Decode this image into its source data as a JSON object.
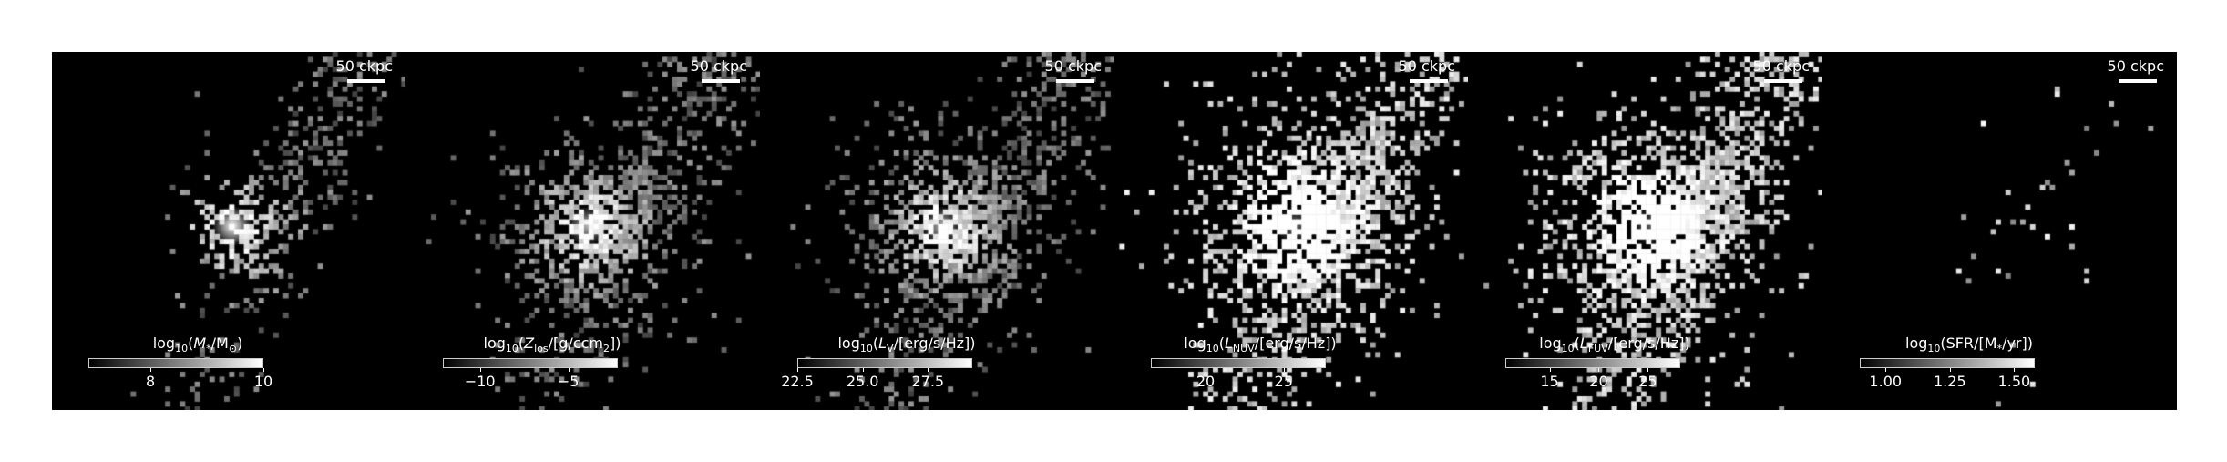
{
  "panels": [
    {
      "scale_label": "50 ckpc",
      "quantity": "M",
      "cbar": {
        "pre": "log",
        "base": "10",
        "open": "(",
        "sym": "M",
        "sub": "*",
        "mid": "/M",
        "sub2": "⊙",
        "close": ")"
      },
      "cbar_range": [
        6.9,
        10
      ],
      "ticks": [
        {
          "value": 8,
          "label": "8"
        },
        {
          "value": 10,
          "label": "10"
        }
      ],
      "spread": 0.35,
      "fill_prob": 0.45,
      "core_boost": 1.0
    },
    {
      "scale_label": "50 ckpc",
      "quantity": "Z",
      "cbar": {
        "pre": "log",
        "base": "10",
        "open": "(",
        "sym": "Z",
        "sub": "los",
        "mid": "/[g/ccm",
        "sub2": "2",
        "close": "])"
      },
      "cbar_range": [
        -12.1,
        -2.2
      ],
      "ticks": [
        {
          "value": -10,
          "label": "−10"
        },
        {
          "value": -5,
          "label": "−5"
        }
      ],
      "spread": 0.62,
      "fill_prob": 0.6,
      "core_boost": 0.7
    },
    {
      "scale_label": "50 ckpc",
      "quantity": "LV",
      "cbar": {
        "pre": "log",
        "base": "10",
        "open": "(",
        "sym": "L",
        "sub": "V",
        "mid": "/[erg/s/Hz",
        "sub2": "",
        "close": "])"
      },
      "cbar_range": [
        22.5,
        29.2
      ],
      "ticks": [
        {
          "value": 22.5,
          "label": "22.5"
        },
        {
          "value": 25.0,
          "label": "25.0"
        },
        {
          "value": 27.5,
          "label": "27.5"
        }
      ],
      "spread": 0.62,
      "fill_prob": 0.62,
      "core_boost": 0.7
    },
    {
      "scale_label": "50 ckpc",
      "quantity": "LNUV",
      "cbar": {
        "pre": "log",
        "base": "10",
        "open": "(",
        "sym": "L",
        "sub": "NUV",
        "mid": "/[erg/s/Hz",
        "sub2": "",
        "close": "])"
      },
      "cbar_range": [
        16.5,
        27.7
      ],
      "ticks": [
        {
          "value": 20,
          "label": "20"
        },
        {
          "value": 25,
          "label": "25"
        }
      ],
      "spread": 0.7,
      "fill_prob": 0.7,
      "core_boost": 0.4
    },
    {
      "scale_label": "50 ckpc",
      "quantity": "LFUV",
      "cbar": {
        "pre": "log",
        "base": "10",
        "open": "(",
        "sym": "L",
        "sub": "FUV",
        "mid": "/[erg/s/Hz",
        "sub2": "",
        "close": "])"
      },
      "cbar_range": [
        10.5,
        28.3
      ],
      "ticks": [
        {
          "value": 15,
          "label": "15"
        },
        {
          "value": 20,
          "label": "20"
        },
        {
          "value": 25,
          "label": "25"
        }
      ],
      "spread": 0.72,
      "fill_prob": 0.72,
      "core_boost": 0.35
    },
    {
      "scale_label": "50 ckpc",
      "quantity": "SFR",
      "cbar": {
        "pre": "log",
        "base": "10",
        "open": "(SFR/[M",
        "sym": "",
        "sub": "*",
        "mid": "/yr",
        "sub2": "",
        "close": "])"
      },
      "cbar_range": [
        0.9,
        1.58
      ],
      "ticks": [
        {
          "value": 1.0,
          "label": "1.00"
        },
        {
          "value": 1.25,
          "label": "1.25"
        },
        {
          "value": 1.5,
          "label": "1.50"
        }
      ],
      "spread": 0.5,
      "fill_prob": 0.035,
      "core_boost": 0.0
    }
  ]
}
